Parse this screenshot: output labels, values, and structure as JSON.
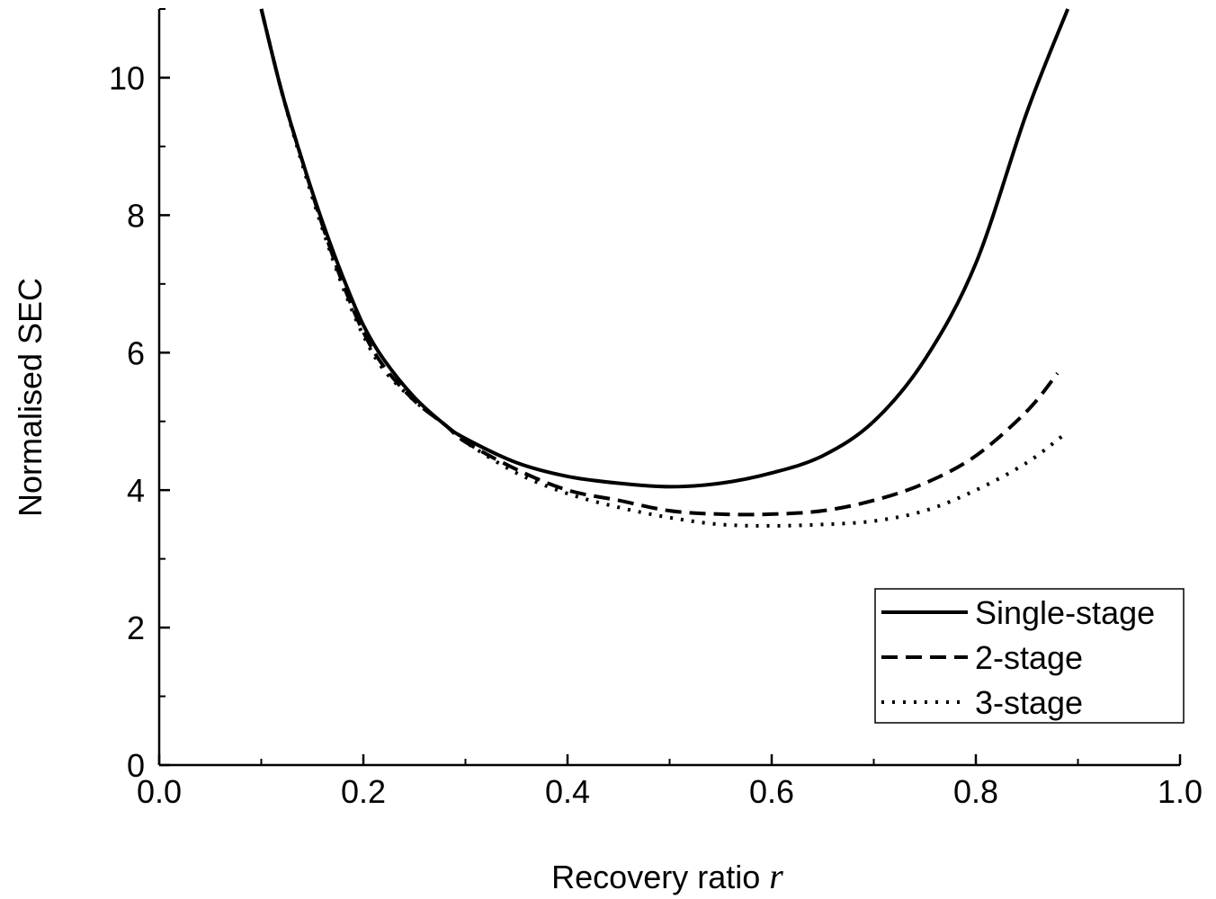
{
  "chart_data": {
    "type": "line",
    "title": "",
    "xlabel": "Recovery ratio",
    "xlabel_variable": "r",
    "ylabel": "Normalised SEC",
    "xlim": [
      0.0,
      1.0
    ],
    "ylim": [
      0,
      11
    ],
    "xticks": [
      0.0,
      0.2,
      0.4,
      0.6,
      0.8,
      1.0
    ],
    "xtick_labels": [
      "0.0",
      "0.2",
      "0.4",
      "0.6",
      "0.8",
      "1.0"
    ],
    "yticks": [
      0,
      2,
      4,
      6,
      8,
      10
    ],
    "ytick_labels": [
      "0",
      "2",
      "4",
      "6",
      "8",
      "10"
    ],
    "grid": false,
    "legend_position": "bottom-right",
    "series": [
      {
        "name": "Single-stage",
        "style": "solid",
        "x": [
          0.1,
          0.12,
          0.14,
          0.16,
          0.18,
          0.2,
          0.22,
          0.25,
          0.28,
          0.3,
          0.35,
          0.4,
          0.45,
          0.5,
          0.55,
          0.6,
          0.65,
          0.7,
          0.75,
          0.8,
          0.85,
          0.89
        ],
        "y": [
          11.0,
          9.8,
          8.8,
          7.9,
          7.1,
          6.4,
          5.9,
          5.35,
          4.95,
          4.75,
          4.4,
          4.2,
          4.1,
          4.05,
          4.1,
          4.25,
          4.5,
          5.0,
          5.9,
          7.3,
          9.5,
          11.0
        ]
      },
      {
        "name": "2-stage",
        "style": "dashed",
        "x": [
          0.1,
          0.12,
          0.14,
          0.16,
          0.18,
          0.2,
          0.22,
          0.25,
          0.28,
          0.3,
          0.35,
          0.4,
          0.45,
          0.5,
          0.55,
          0.6,
          0.65,
          0.7,
          0.75,
          0.8,
          0.85,
          0.88
        ],
        "y": [
          11.0,
          9.8,
          8.8,
          7.85,
          7.0,
          6.3,
          5.8,
          5.3,
          4.95,
          4.7,
          4.3,
          4.0,
          3.85,
          3.7,
          3.65,
          3.65,
          3.7,
          3.85,
          4.1,
          4.5,
          5.15,
          5.7
        ]
      },
      {
        "name": "3-stage",
        "style": "dotted",
        "x": [
          0.1,
          0.12,
          0.14,
          0.16,
          0.18,
          0.2,
          0.22,
          0.25,
          0.28,
          0.3,
          0.35,
          0.4,
          0.45,
          0.5,
          0.55,
          0.6,
          0.65,
          0.7,
          0.75,
          0.8,
          0.85,
          0.89
        ],
        "y": [
          11.0,
          9.8,
          8.75,
          7.8,
          6.95,
          6.25,
          5.75,
          5.3,
          4.95,
          4.7,
          4.25,
          3.95,
          3.75,
          3.6,
          3.5,
          3.48,
          3.5,
          3.55,
          3.7,
          4.0,
          4.4,
          4.85
        ]
      }
    ]
  }
}
